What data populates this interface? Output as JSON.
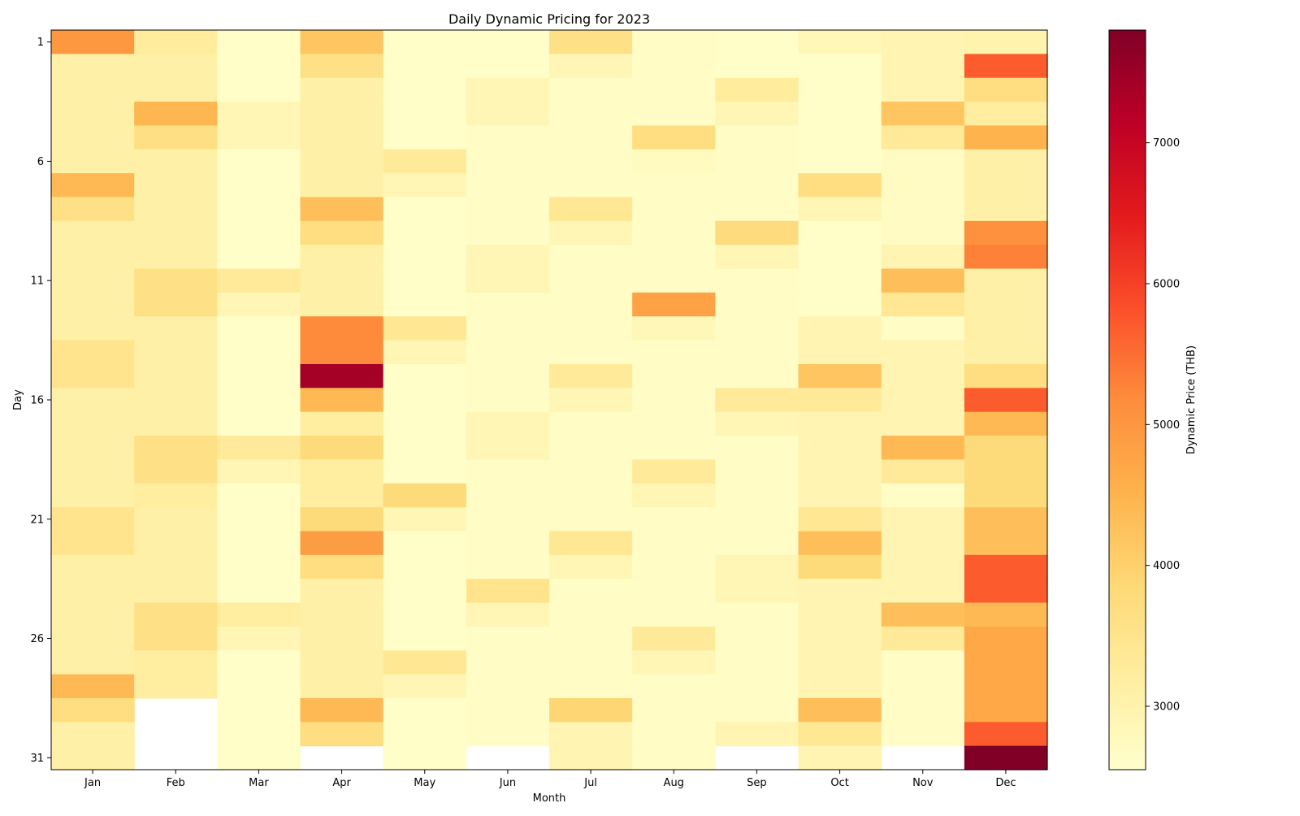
{
  "chart_data": {
    "type": "heatmap",
    "title": "Daily Dynamic Pricing for 2023",
    "xlabel": "Month",
    "ylabel": "Day",
    "colorbar_label": "Dynamic Price (THB)",
    "colormap": "YlOrRd",
    "color_range": [
      2550,
      7800
    ],
    "colorbar_ticks": [
      3000,
      4000,
      5000,
      6000,
      7000
    ],
    "x_categories": [
      "Jan",
      "Feb",
      "Mar",
      "Apr",
      "May",
      "Jun",
      "Jul",
      "Aug",
      "Sep",
      "Oct",
      "Nov",
      "Dec"
    ],
    "y_tick_labels": [
      1,
      6,
      11,
      16,
      21,
      26,
      31
    ],
    "days": [
      1,
      2,
      3,
      4,
      5,
      6,
      7,
      8,
      9,
      10,
      11,
      12,
      13,
      14,
      15,
      16,
      17,
      18,
      19,
      20,
      21,
      22,
      23,
      24,
      25,
      26,
      27,
      28,
      29,
      30,
      31
    ],
    "columns": [
      {
        "month": "Jan",
        "values": [
          5000,
          3100,
          3100,
          3100,
          3100,
          3100,
          4400,
          3600,
          3100,
          3100,
          3100,
          3100,
          3100,
          3500,
          3500,
          3100,
          3100,
          3100,
          3100,
          3100,
          3500,
          3500,
          3100,
          3100,
          3100,
          3100,
          3100,
          4400,
          3700,
          3100,
          3100
        ]
      },
      {
        "month": "Feb",
        "values": [
          3250,
          3100,
          3100,
          4450,
          3650,
          3100,
          3100,
          3100,
          3100,
          3100,
          3600,
          3600,
          3100,
          3100,
          3100,
          3100,
          3100,
          3600,
          3600,
          3200,
          3100,
          3100,
          3100,
          3100,
          3600,
          3600,
          3200,
          3200,
          null,
          null,
          null
        ]
      },
      {
        "month": "Mar",
        "values": [
          2600,
          2600,
          2600,
          2900,
          2900,
          2600,
          2600,
          2600,
          2600,
          2600,
          3300,
          2900,
          2600,
          2600,
          2600,
          2600,
          2600,
          3300,
          2900,
          2600,
          2600,
          2600,
          2600,
          2600,
          3200,
          2900,
          2600,
          2600,
          2600,
          2600,
          2600
        ]
      },
      {
        "month": "Apr",
        "values": [
          4200,
          3600,
          3100,
          3100,
          3100,
          3100,
          3100,
          4300,
          3700,
          3100,
          3100,
          3100,
          5200,
          5200,
          7400,
          4400,
          3200,
          3800,
          3200,
          3200,
          3800,
          4900,
          3700,
          3100,
          3100,
          3100,
          3100,
          3100,
          4400,
          3700,
          null
        ]
      },
      {
        "month": "May",
        "values": [
          2600,
          2600,
          2600,
          2600,
          2600,
          3300,
          2900,
          2600,
          2600,
          2600,
          2600,
          2600,
          3400,
          2900,
          2600,
          2600,
          2600,
          2600,
          2600,
          3800,
          2900,
          2600,
          2600,
          2600,
          2600,
          2600,
          3400,
          2900,
          2600,
          2600,
          2600
        ]
      },
      {
        "month": "Jun",
        "values": [
          2600,
          2600,
          2900,
          2900,
          2650,
          2650,
          2650,
          2650,
          2650,
          2900,
          2900,
          2650,
          2650,
          2650,
          2650,
          2650,
          2900,
          2900,
          2650,
          2650,
          2650,
          2650,
          2650,
          3500,
          2900,
          2650,
          2650,
          2650,
          2650,
          2650,
          null
        ]
      },
      {
        "month": "Jul",
        "values": [
          3600,
          2900,
          2650,
          2650,
          2650,
          2650,
          2650,
          3400,
          2900,
          2650,
          2650,
          2650,
          2650,
          2650,
          3300,
          2900,
          2650,
          2650,
          2650,
          2650,
          2650,
          3400,
          2900,
          2650,
          2650,
          2650,
          2650,
          2650,
          3900,
          2950,
          2950
        ]
      },
      {
        "month": "Aug",
        "values": [
          2650,
          2650,
          2650,
          2650,
          3700,
          2750,
          2650,
          2650,
          2650,
          2650,
          2650,
          4800,
          2850,
          2650,
          2650,
          2650,
          2650,
          2650,
          3300,
          2900,
          2650,
          2650,
          2650,
          2650,
          2650,
          3300,
          2900,
          2650,
          2650,
          2650,
          2650
        ]
      },
      {
        "month": "Sep",
        "values": [
          2600,
          2600,
          3250,
          2900,
          2650,
          2650,
          2650,
          2650,
          3750,
          2900,
          2650,
          2650,
          2650,
          2650,
          2650,
          3300,
          2900,
          2650,
          2650,
          2650,
          2650,
          2650,
          2900,
          2900,
          2650,
          2650,
          2650,
          2650,
          2650,
          2950,
          null
        ]
      },
      {
        "month": "Oct",
        "values": [
          2850,
          2600,
          2600,
          2600,
          2600,
          2600,
          3700,
          2900,
          2600,
          2600,
          2600,
          2600,
          2950,
          2950,
          4200,
          3300,
          2950,
          2950,
          2950,
          2950,
          3400,
          4300,
          3800,
          2950,
          2950,
          2950,
          2950,
          2950,
          4300,
          3400,
          2950
        ]
      },
      {
        "month": "Nov",
        "values": [
          2950,
          2950,
          2950,
          4200,
          3300,
          2700,
          2700,
          2700,
          2700,
          2950,
          4300,
          3400,
          2650,
          2950,
          2950,
          2950,
          2950,
          4400,
          3300,
          2650,
          2950,
          2950,
          2950,
          2950,
          4300,
          3300,
          2650,
          2650,
          2650,
          2650,
          null
        ]
      },
      {
        "month": "Dec",
        "values": [
          3000,
          5700,
          3700,
          3200,
          4500,
          3100,
          3100,
          3100,
          5100,
          5300,
          3100,
          3100,
          3100,
          3100,
          3700,
          5700,
          4400,
          3800,
          3800,
          3800,
          4300,
          4300,
          5700,
          5700,
          4400,
          4700,
          4700,
          4700,
          4700,
          5700,
          7800
        ]
      }
    ]
  }
}
